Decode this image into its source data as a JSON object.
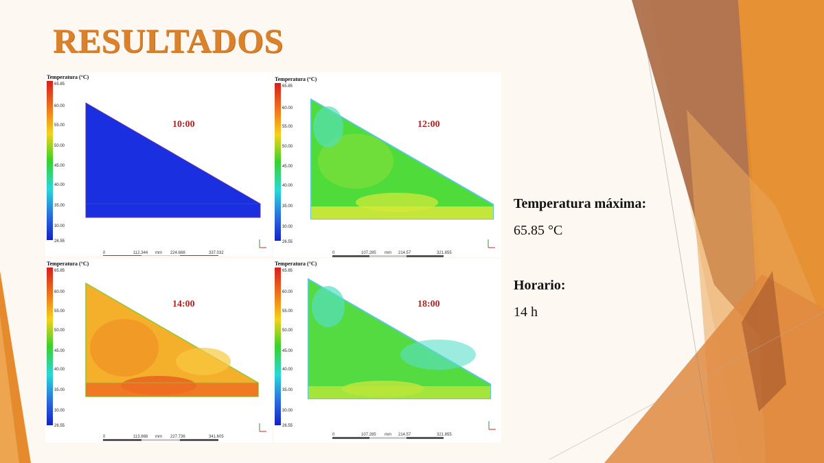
{
  "slide": {
    "title": "RESULTADOS",
    "title_color": "#d9822b"
  },
  "legend": {
    "title": "Temperatura (°C)",
    "ticks": [
      "65.85",
      "60.00",
      "55.00",
      "50.00",
      "45.00",
      "40.00",
      "35.00",
      "30.00",
      "26.55"
    ]
  },
  "panels": [
    {
      "time": "10:00",
      "scale": [
        "0",
        "112.344",
        "mm",
        "224.688",
        "337.032"
      ],
      "temperature_level": "low"
    },
    {
      "time": "12:00",
      "scale": [
        "0",
        "107.285",
        "mm",
        "214.57",
        "321.855"
      ],
      "temperature_level": "medium"
    },
    {
      "time": "14:00",
      "scale": [
        "0",
        "113.868",
        "mm",
        "227.736",
        "341.605"
      ],
      "temperature_level": "high"
    },
    {
      "time": "18:00",
      "scale": [
        "0",
        "107.285",
        "mm",
        "214.57",
        "321.855"
      ],
      "temperature_level": "medium"
    }
  ],
  "info": {
    "max_temp_label": "Temperatura máxima:",
    "max_temp_value": "65.85 °C",
    "schedule_label": "Horario:",
    "schedule_value": "14 h"
  },
  "colors": {
    "time_label": "#b22222",
    "accent_orange": "#e8892b",
    "accent_brown": "#a0522d"
  }
}
